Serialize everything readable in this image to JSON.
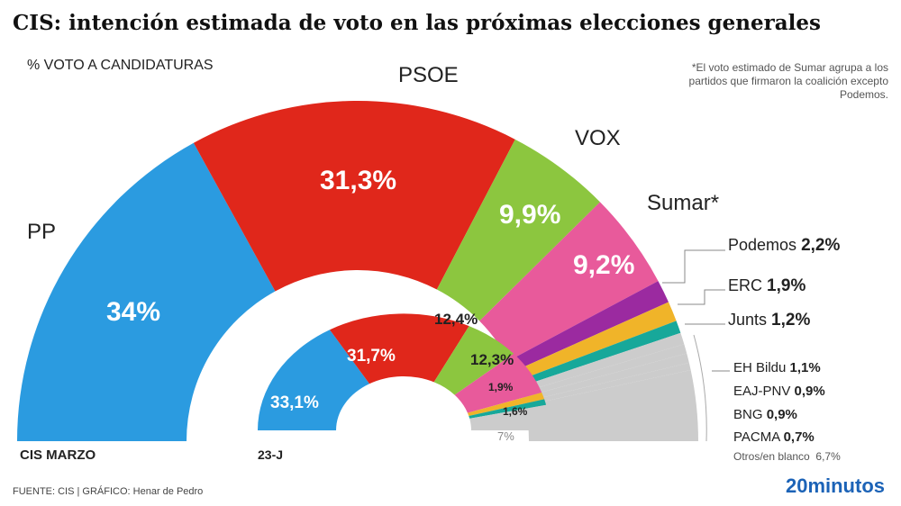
{
  "title": "CIS: intención estimada de voto en las próximas elecciones generales",
  "subtitle": "% VOTO A CANDIDATURAS",
  "note": "*El voto estimado de Sumar agrupa a los partidos que firmaron la coalición excepto Podemos.",
  "footer": "FUENTE: CIS   |  GRÁFICO: Henar de Pedro",
  "brand": "20minutos",
  "chart_data": [
    {
      "type": "pie",
      "name": "CIS MARZO",
      "label": "CIS MARZO",
      "shape": "half-donut",
      "categories": [
        "PP",
        "PSOE",
        "VOX",
        "Sumar*",
        "Podemos",
        "ERC",
        "Junts",
        "EH Bildu",
        "EAJ-PNV",
        "BNG",
        "PACMA",
        "Otros/en blanco"
      ],
      "values": [
        34,
        31.3,
        9.9,
        9.2,
        2.2,
        1.9,
        1.2,
        1.1,
        0.9,
        0.9,
        0.7,
        6.7
      ],
      "value_labels": [
        "34%",
        "31,3%",
        "9,9%",
        "9,2%",
        "2,2%",
        "1,9%",
        "1,2%",
        "1,1%",
        "0,9%",
        "0,9%",
        "0,7%",
        "6,7%"
      ],
      "colors": [
        "#2b9be0",
        "#e0271b",
        "#8cc63f",
        "#e85a9b",
        "#9b2aa0",
        "#f0b429",
        "#17a89a",
        "#cccccc",
        "#cccccc",
        "#cccccc",
        "#cccccc",
        "#cccccc"
      ]
    },
    {
      "type": "pie",
      "name": "23-J",
      "label": "23-J",
      "shape": "half-donut",
      "values": [
        33.1,
        31.7,
        12.4,
        12.3,
        1.9,
        1.6,
        7
      ],
      "value_labels": [
        "33,1%",
        "31,7%",
        "12,4%",
        "12,3%",
        "1,9%",
        "1,6%",
        "7%"
      ],
      "colors": [
        "#2b9be0",
        "#e0271b",
        "#8cc63f",
        "#e85a9b",
        "#f0b429",
        "#17a89a",
        "#cccccc"
      ]
    }
  ]
}
